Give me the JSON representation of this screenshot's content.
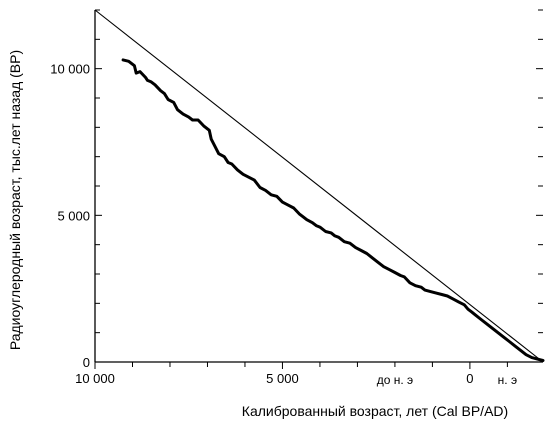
{
  "chart_data": {
    "type": "line",
    "xlabel": "Калиброванный возраст, лет  (Cal BP/AD)",
    "ylabel": "Радиоуглеродный возраст, тыс.лет назад (BP)",
    "x_direction": "decreasing-left-to-right",
    "xlim": [
      10000,
      -1950
    ],
    "ylim": [
      0,
      12000
    ],
    "x_ticks": [
      {
        "value": 10000,
        "label": "10 000"
      },
      {
        "value": 5000,
        "label": "5 000"
      },
      {
        "value": 0,
        "label": "0"
      }
    ],
    "y_ticks": [
      {
        "value": 10000,
        "label": "10 000"
      },
      {
        "value": 5000,
        "label": "5 000"
      },
      {
        "value": 0,
        "label": "0"
      }
    ],
    "era_labels": [
      {
        "text": "до н. э",
        "x": 2000
      },
      {
        "text": "н. э",
        "x": -1000
      }
    ],
    "grid": false,
    "reference_line": {
      "x": [
        10000,
        -1950
      ],
      "y": [
        12000,
        0
      ]
    },
    "series": [
      {
        "x": [
          9250,
          9100,
          8950,
          8900,
          8800,
          8650,
          8600,
          8500,
          8400,
          8250,
          8150,
          8050,
          7900,
          7800,
          7650,
          7500,
          7400,
          7250,
          7100,
          6950,
          6900,
          6800,
          6700,
          6550,
          6450,
          6350,
          6200,
          6050,
          5900,
          5750,
          5600,
          5450,
          5300,
          5150,
          5000,
          4850,
          4700,
          4550,
          4450,
          4350,
          4200,
          4100,
          4000,
          3850,
          3700,
          3600,
          3500,
          3350,
          3200,
          3050,
          2900,
          2750,
          2600,
          2450,
          2300,
          2150,
          2000,
          1850,
          1750,
          1600,
          1450,
          1300,
          1200,
          1050,
          900,
          750,
          600,
          450,
          300,
          150,
          50,
          -50,
          -150,
          -300,
          -450,
          -600,
          -750,
          -900,
          -1050,
          -1200,
          -1350,
          -1500,
          -1650,
          -1800,
          -1950
        ],
        "y": [
          10300,
          10250,
          10100,
          9850,
          9900,
          9700,
          9600,
          9550,
          9450,
          9250,
          9150,
          8950,
          8850,
          8600,
          8450,
          8350,
          8250,
          8250,
          8050,
          7900,
          7600,
          7350,
          7100,
          7000,
          6800,
          6750,
          6550,
          6400,
          6300,
          6200,
          5950,
          5850,
          5700,
          5650,
          5450,
          5350,
          5250,
          5050,
          4950,
          4850,
          4750,
          4650,
          4600,
          4450,
          4400,
          4300,
          4250,
          4100,
          4050,
          3900,
          3800,
          3700,
          3550,
          3400,
          3250,
          3150,
          3050,
          2950,
          2900,
          2700,
          2600,
          2550,
          2450,
          2400,
          2350,
          2300,
          2250,
          2150,
          2050,
          1950,
          1800,
          1700,
          1600,
          1450,
          1300,
          1150,
          1000,
          850,
          700,
          550,
          400,
          250,
          150,
          100,
          50
        ]
      }
    ]
  }
}
